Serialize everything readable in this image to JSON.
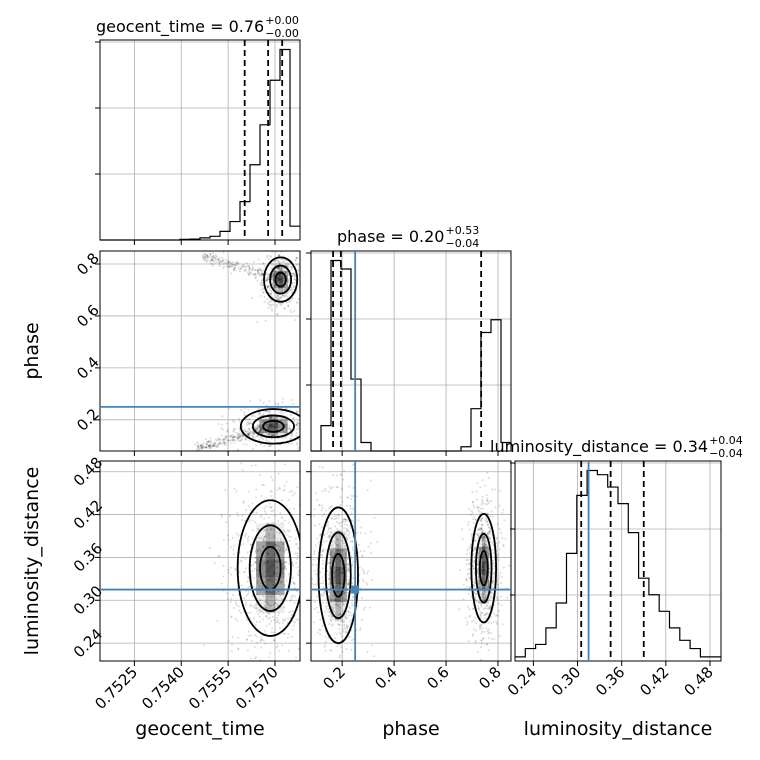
{
  "chart_data": {
    "type": "scatter",
    "kind": "corner-plot",
    "parameters": [
      "geocent_time",
      "phase",
      "luminosity_distance"
    ],
    "axis_labels": {
      "geocent_time": "geocent_time",
      "phase": "phase",
      "luminosity_distance": "luminosity_distance"
    },
    "titles": [
      {
        "param": "geocent_time",
        "text": "geocent_time = 0.76",
        "plus": "+0.00",
        "minus": "−0.00"
      },
      {
        "param": "phase",
        "text": "phase = 0.20",
        "plus": "+0.53",
        "minus": "−0.04"
      },
      {
        "param": "luminosity_distance",
        "text": "luminosity_distance = 0.34",
        "plus": "+0.04",
        "minus": "−0.04"
      }
    ],
    "ranges": {
      "geocent_time": [
        0.7514,
        0.7578
      ],
      "phase": [
        0.08,
        0.85
      ],
      "luminosity_distance": [
        0.215,
        0.495
      ]
    },
    "ticks": {
      "geocent_time": [
        "0.7525",
        "0.7540",
        "0.7555",
        "0.7570"
      ],
      "phase": [
        "0.2",
        "0.4",
        "0.6",
        "0.8"
      ],
      "luminosity_distance": [
        "0.24",
        "0.30",
        "0.36",
        "0.42",
        "0.48"
      ]
    },
    "quantiles": {
      "geocent_time": [
        0.75603,
        0.75678,
        0.75723
      ],
      "phase": [
        0.165,
        0.195,
        0.735
      ],
      "luminosity_distance": [
        0.305,
        0.345,
        0.39
      ]
    },
    "truths": {
      "phase": 0.25,
      "luminosity_distance": 0.315
    },
    "histograms": {
      "geocent_time": {
        "edges": [
          0.7514,
          0.75172,
          0.75204,
          0.75236,
          0.75268,
          0.753,
          0.75332,
          0.75364,
          0.75396,
          0.75428,
          0.7546,
          0.75492,
          0.75524,
          0.75556,
          0.75588,
          0.7562,
          0.75652,
          0.75684,
          0.75716,
          0.75748,
          0.7578
        ],
        "counts": [
          0,
          0,
          0,
          0,
          0,
          0,
          0,
          0,
          0.2,
          0.3,
          0.7,
          1.2,
          2.8,
          6.0,
          12.5,
          24.5,
          37.5,
          52.0,
          62.0,
          4.5
        ]
      },
      "phase": {
        "edges": [
          0.08,
          0.1185,
          0.157,
          0.1955,
          0.234,
          0.2725,
          0.311,
          0.3495,
          0.388,
          0.4265,
          0.465,
          0.5035,
          0.542,
          0.5805,
          0.619,
          0.6575,
          0.696,
          0.7345,
          0.773,
          0.8115,
          0.85
        ],
        "counts": [
          0,
          6,
          45,
          43,
          17,
          2,
          0,
          0,
          0,
          0,
          0,
          0,
          0,
          0,
          0,
          1,
          10,
          28,
          31,
          2
        ]
      },
      "luminosity_distance": {
        "edges": [
          0.215,
          0.229,
          0.243,
          0.257,
          0.271,
          0.285,
          0.299,
          0.313,
          0.327,
          0.341,
          0.355,
          0.369,
          0.383,
          0.397,
          0.411,
          0.425,
          0.439,
          0.453,
          0.467,
          0.481,
          0.495
        ],
        "counts": [
          1,
          3,
          4,
          8,
          14,
          26,
          40,
          46,
          45,
          42,
          38,
          31,
          20,
          16,
          12,
          8,
          5,
          3,
          1,
          1
        ]
      }
    },
    "contours_2d": [
      {
        "pair": [
          "geocent_time",
          "phase"
        ],
        "mode": "upper",
        "center": [
          0.75718,
          0.74
        ],
        "sigma": [
          0.00028,
          0.045
        ]
      },
      {
        "pair": [
          "geocent_time",
          "phase"
        ],
        "mode": "lower",
        "center": [
          0.75695,
          0.175
        ],
        "sigma": [
          0.00055,
          0.035
        ]
      },
      {
        "pair": [
          "geocent_time",
          "luminosity_distance"
        ],
        "mode": "single",
        "center": [
          0.75685,
          0.345
        ],
        "sigma": [
          0.00055,
          0.05
        ]
      },
      {
        "pair": [
          "phase",
          "luminosity_distance"
        ],
        "mode": "left",
        "center": [
          0.185,
          0.335
        ],
        "sigma": [
          0.04,
          0.05
        ]
      },
      {
        "pair": [
          "phase",
          "luminosity_distance"
        ],
        "mode": "right",
        "center": [
          0.745,
          0.345
        ],
        "sigma": [
          0.025,
          0.04
        ]
      }
    ],
    "grid": true
  }
}
